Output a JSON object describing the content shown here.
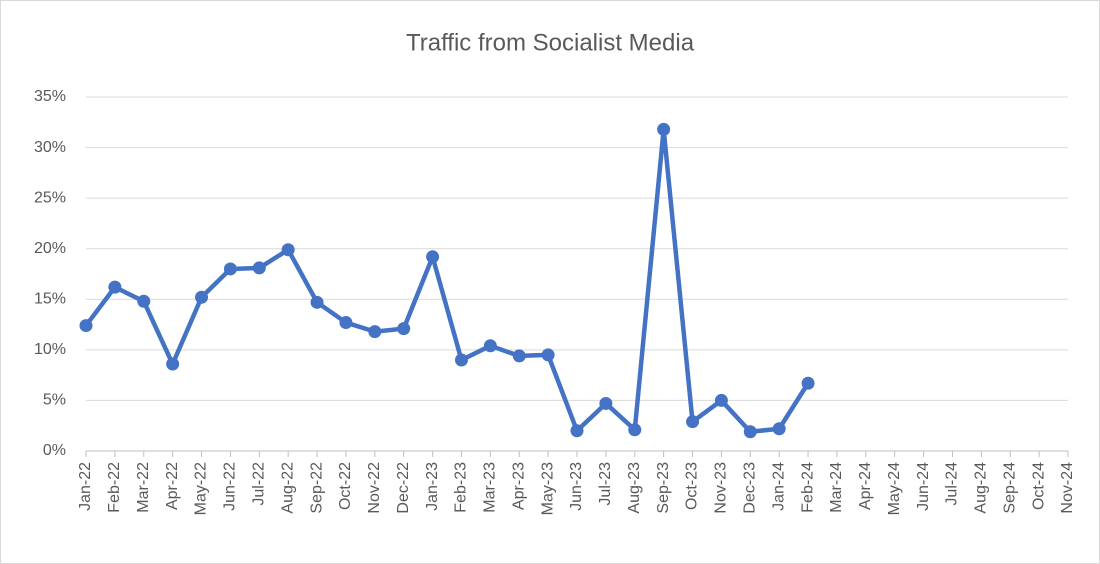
{
  "chart_data": {
    "type": "line",
    "title": "Traffic from Socialist Media",
    "categories": [
      "Jan-22",
      "Feb-22",
      "Mar-22",
      "Apr-22",
      "May-22",
      "Jun-22",
      "Jul-22",
      "Aug-22",
      "Sep-22",
      "Oct-22",
      "Nov-22",
      "Dec-22",
      "Jan-23",
      "Feb-23",
      "Mar-23",
      "Apr-23",
      "May-23",
      "Jun-23",
      "Jul-23",
      "Aug-23",
      "Sep-23",
      "Oct-23",
      "Nov-23",
      "Dec-23",
      "Jan-24",
      "Feb-24",
      "Mar-24",
      "Apr-24",
      "May-24",
      "Jun-24",
      "Jul-24",
      "Aug-24",
      "Sep-24",
      "Oct-24",
      "Nov-24"
    ],
    "values": [
      12.4,
      16.2,
      14.8,
      8.6,
      15.2,
      18.0,
      18.1,
      19.9,
      14.7,
      12.7,
      11.8,
      12.1,
      19.2,
      9.0,
      10.4,
      9.4,
      9.5,
      2.0,
      4.7,
      2.1,
      31.8,
      2.9,
      5.0,
      1.9,
      2.2,
      6.7,
      null,
      null,
      null,
      null,
      null,
      null,
      null,
      null,
      null
    ],
    "color": "#4472c4",
    "ylim": [
      0,
      35
    ],
    "yticks": [
      {
        "value": 0,
        "label": "0%"
      },
      {
        "value": 5,
        "label": "5%"
      },
      {
        "value": 10,
        "label": "10%"
      },
      {
        "value": 15,
        "label": "15%"
      },
      {
        "value": 20,
        "label": "20%"
      },
      {
        "value": 25,
        "label": "25%"
      },
      {
        "value": 30,
        "label": "30%"
      },
      {
        "value": 35,
        "label": "35%"
      }
    ],
    "grid": true
  }
}
